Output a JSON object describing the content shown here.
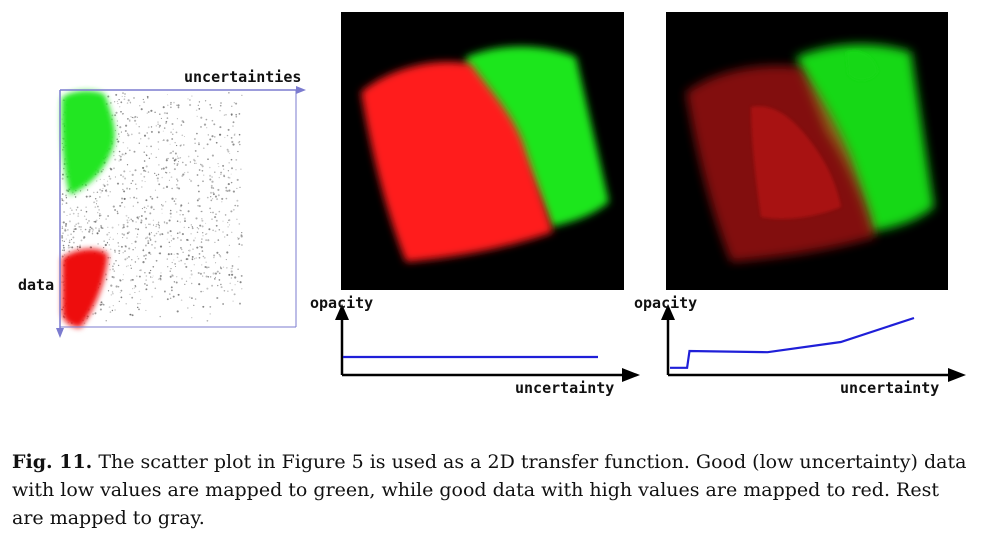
{
  "scatter": {
    "x_axis_label": "uncertainties",
    "y_axis_label": "data",
    "colors": {
      "axis": "#7b7bcf",
      "good_low": "#22e622",
      "good_high": "#ee1111",
      "rest": "#555555"
    }
  },
  "renders": [
    {
      "colors": {
        "background": "#000000",
        "red": "#ff1a1a",
        "green": "#1ee61e"
      }
    },
    {
      "colors": {
        "background": "#000000",
        "red": "#c81414",
        "green": "#18d818"
      }
    }
  ],
  "transfer_functions": [
    {
      "y_label": "opacity",
      "x_label": "uncertainty",
      "line_color": "#1f1fd8",
      "curve": [
        [
          0,
          0.3
        ],
        [
          1,
          0.3
        ]
      ]
    },
    {
      "y_label": "opacity",
      "x_label": "uncertainty",
      "line_color": "#1f1fd8",
      "curve": [
        [
          0,
          0.12
        ],
        [
          0.07,
          0.12
        ],
        [
          0.08,
          0.4
        ],
        [
          0.4,
          0.38
        ],
        [
          0.7,
          0.55
        ],
        [
          1,
          0.95
        ]
      ]
    }
  ],
  "caption": {
    "label": "Fig. 11.",
    "text": " The scatter plot in Figure 5 is used as a 2D transfer function. Good (low uncertainty) data with low values are mapped to green, while good data with high values are mapped to red. Rest are mapped to gray."
  }
}
